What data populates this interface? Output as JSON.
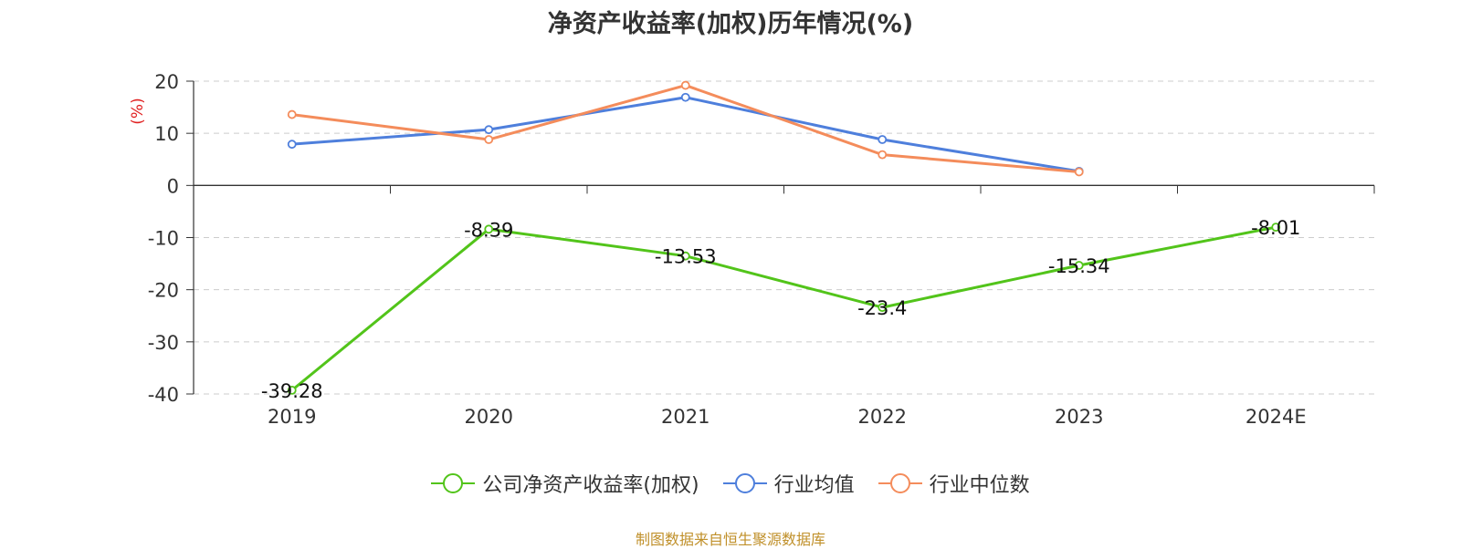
{
  "chart_data": {
    "type": "line",
    "title": "净资产收益率(加权)历年情况(%)",
    "ylabel": "(%)",
    "xlabel": "",
    "categories": [
      "2019",
      "2020",
      "2021",
      "2022",
      "2023",
      "2024E"
    ],
    "ylim": [
      -40,
      20
    ],
    "yticks": [
      20,
      10,
      0,
      -10,
      -20,
      -30,
      -40
    ],
    "grid": true,
    "legend_position": "bottom",
    "series": [
      {
        "name": "公司净资产收益率(加权)",
        "color": "#52c41a",
        "values": [
          -39.28,
          -8.39,
          -13.53,
          -23.4,
          -15.34,
          -8.01
        ],
        "data_labels": [
          "-39.28",
          "-8.39",
          "-13.53",
          "-23.4",
          "-15.34",
          "-8.01"
        ]
      },
      {
        "name": "行业均值",
        "color": "#4e7fdc",
        "values": [
          7.9,
          10.7,
          16.9,
          8.8,
          2.7,
          null
        ]
      },
      {
        "name": "行业中位数",
        "color": "#f48c5b",
        "values": [
          13.6,
          8.8,
          19.2,
          5.9,
          2.6,
          null
        ]
      }
    ]
  },
  "footer": {
    "source": "制图数据来自恒生聚源数据库"
  }
}
